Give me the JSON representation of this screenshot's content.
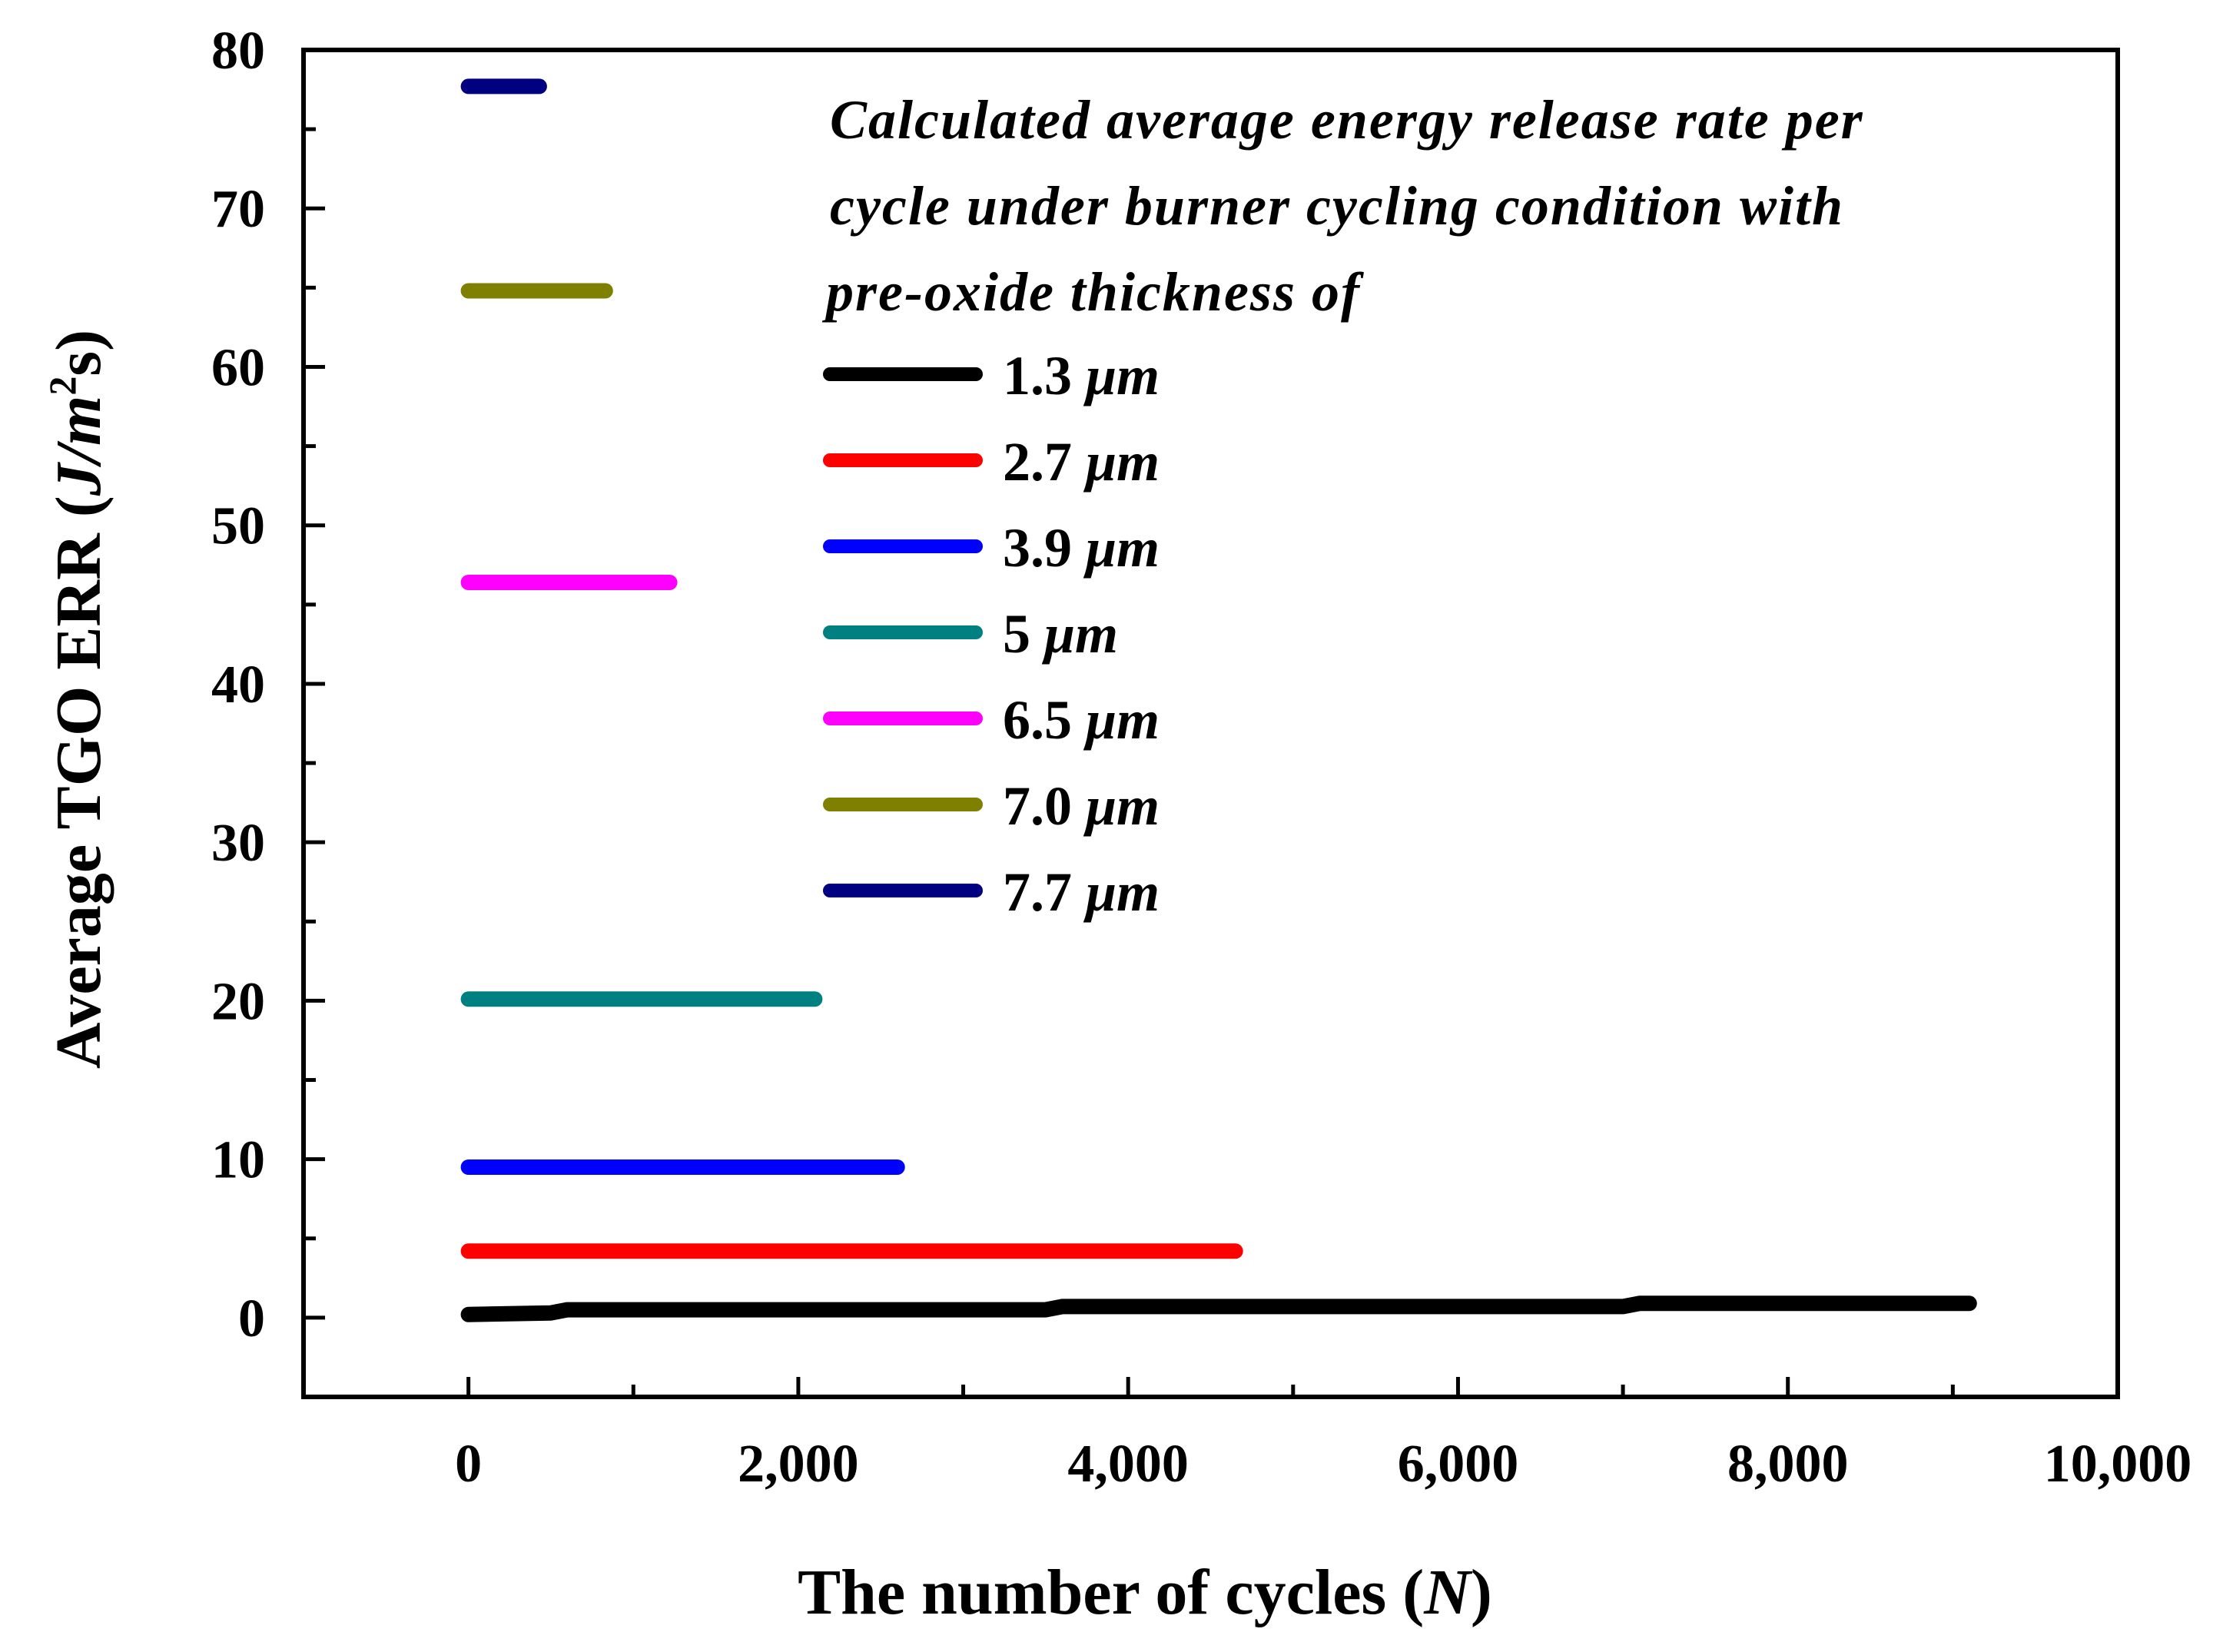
{
  "chart_data": {
    "type": "line",
    "xlabel": "The number of cycles (N)",
    "xlabel_parts": {
      "before": "The number of cycles (",
      "var": "N",
      "after": ")"
    },
    "ylabel_parts": {
      "before": "Average TGO ERR (",
      "unit": "J/m",
      "sup": "2",
      "after": "s)"
    },
    "xlim": [
      -1000,
      10000
    ],
    "ylim": [
      -5,
      80
    ],
    "xticks": [
      0,
      2000,
      4000,
      6000,
      8000,
      10000
    ],
    "xtick_labels": [
      "0",
      "2,000",
      "4,000",
      "6,000",
      "8,000",
      "10,000"
    ],
    "yticks": [
      0,
      10,
      20,
      30,
      40,
      50,
      60,
      70,
      80
    ],
    "ytick_labels": [
      "0",
      "10",
      "20",
      "30",
      "40",
      "50",
      "60",
      "70",
      "80"
    ],
    "legend_title_lines": [
      "Calculated average energy release rate per",
      "cycle under burner cycling condition with",
      "pre-oxide thickness of"
    ],
    "legend_position": "top-right",
    "series": [
      {
        "name": "1.3 μm",
        "value": "1.3",
        "unit": "μm",
        "color": "#000000",
        "points": [
          [
            0,
            0.2
          ],
          [
            500,
            0.3
          ],
          [
            600,
            0.5
          ],
          [
            3500,
            0.5
          ],
          [
            3600,
            0.7
          ],
          [
            7000,
            0.7
          ],
          [
            7100,
            0.9
          ],
          [
            9100,
            0.9
          ]
        ]
      },
      {
        "name": "2.7 μm",
        "value": "2.7",
        "unit": "μm",
        "color": "#ff0000",
        "points": [
          [
            0,
            4.2
          ],
          [
            4650,
            4.2
          ]
        ]
      },
      {
        "name": "3.9 μm",
        "value": "3.9",
        "unit": "μm",
        "color": "#0000ff",
        "points": [
          [
            0,
            9.5
          ],
          [
            2600,
            9.5
          ]
        ]
      },
      {
        "name": "5 μm",
        "value": "5",
        "unit": "μm",
        "color": "#008080",
        "points": [
          [
            0,
            20.1
          ],
          [
            2100,
            20.1
          ]
        ]
      },
      {
        "name": "6.5 μm",
        "value": "6.5",
        "unit": "μm",
        "color": "#ff00ff",
        "points": [
          [
            0,
            46.4
          ],
          [
            1220,
            46.4
          ]
        ]
      },
      {
        "name": "7.0 μm",
        "value": "7.0",
        "unit": "μm",
        "color": "#808000",
        "points": [
          [
            0,
            64.8
          ],
          [
            830,
            64.8
          ]
        ]
      },
      {
        "name": "7.7 μm",
        "value": "7.7",
        "unit": "μm",
        "color": "#000080",
        "points": [
          [
            0,
            77.7
          ],
          [
            430,
            77.7
          ]
        ]
      }
    ]
  }
}
